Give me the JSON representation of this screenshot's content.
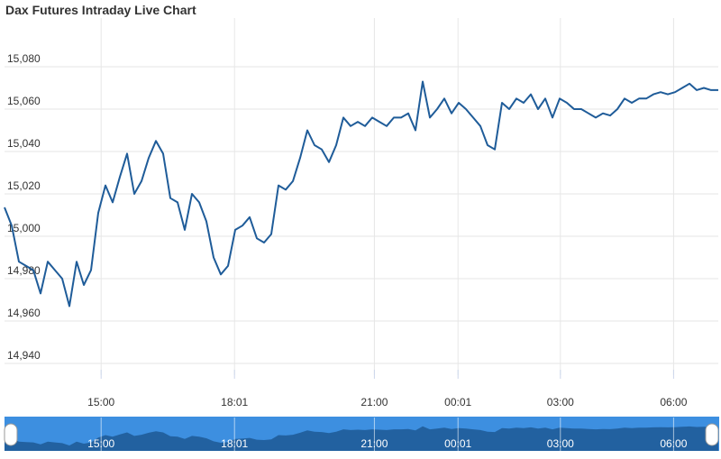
{
  "chart_data": {
    "type": "line",
    "title": "Dax Futures Intraday Live Chart",
    "color": "#1f5c99",
    "x": [
      0,
      1,
      2,
      3,
      4,
      5,
      6,
      7,
      8,
      9,
      10,
      11,
      12,
      13,
      14,
      15,
      16,
      17,
      18,
      19,
      20,
      21,
      22,
      23,
      24,
      25,
      26,
      27,
      28,
      29,
      30,
      31,
      32,
      33,
      34,
      35,
      36,
      37,
      38,
      39,
      40,
      41,
      42,
      43,
      44,
      45,
      46,
      47,
      48,
      49,
      50,
      51,
      52,
      53,
      54,
      55,
      56,
      57,
      58,
      59,
      60,
      61,
      62,
      63,
      64,
      65,
      66,
      67,
      68,
      69,
      70,
      71,
      72,
      73,
      74,
      75,
      76,
      77,
      78,
      79,
      80,
      81,
      82,
      83,
      84,
      85,
      86,
      87,
      88,
      89,
      90,
      91,
      92,
      93,
      94,
      95,
      96,
      97,
      98,
      99
    ],
    "values": [
      15013.6,
      15005,
      14988,
      14986,
      14984,
      14973,
      14988,
      14984,
      14980,
      14967,
      14988,
      14977,
      14984,
      15011,
      15024,
      15016,
      15028,
      15039,
      15020,
      15026,
      15037,
      15045,
      15039,
      15018,
      15016,
      15003,
      15020,
      15016,
      15007,
      14990,
      14982,
      14986,
      15003,
      15005,
      15009,
      14999,
      14997,
      15001,
      15024,
      15022,
      15026,
      15037,
      15050,
      15043,
      15041,
      15035,
      15043,
      15056,
      15052,
      15054,
      15052,
      15056,
      15054,
      15052,
      15056,
      15056,
      15058,
      15050,
      15073,
      15056,
      15060,
      15065,
      15058,
      15063,
      15060,
      15056,
      15052,
      15043,
      15041,
      15063,
      15060,
      15065,
      15063,
      15067,
      15060,
      15065,
      15056,
      15065,
      15063,
      15060,
      15060,
      15058,
      15056,
      15058,
      15057,
      15060,
      15065,
      15063,
      15065,
      15065,
      15067,
      15068,
      15067,
      15068,
      15070,
      15072,
      15069,
      15070,
      15069,
      15069
    ],
    "xlim": [
      0,
      99
    ],
    "xticks": [
      {
        "value": 13.4,
        "label": "15:00"
      },
      {
        "value": 31.9,
        "label": "18:01"
      },
      {
        "value": 51.3,
        "label": "21:00"
      },
      {
        "value": 62.9,
        "label": "00:01"
      },
      {
        "value": 77.1,
        "label": "03:00"
      },
      {
        "value": 92.8,
        "label": "06:00"
      }
    ],
    "ylim": [
      14937,
      15103
    ],
    "yticks": [
      {
        "value": 14940,
        "label": "14,940"
      },
      {
        "value": 14960,
        "label": "14,960"
      },
      {
        "value": 14980,
        "label": "14,980"
      },
      {
        "value": 15000,
        "label": "15,000"
      },
      {
        "value": 15020,
        "label": "15,020"
      },
      {
        "value": 15040,
        "label": "15,040"
      },
      {
        "value": 15060,
        "label": "15,060"
      },
      {
        "value": 15080,
        "label": "15,080"
      }
    ],
    "grid": true
  }
}
